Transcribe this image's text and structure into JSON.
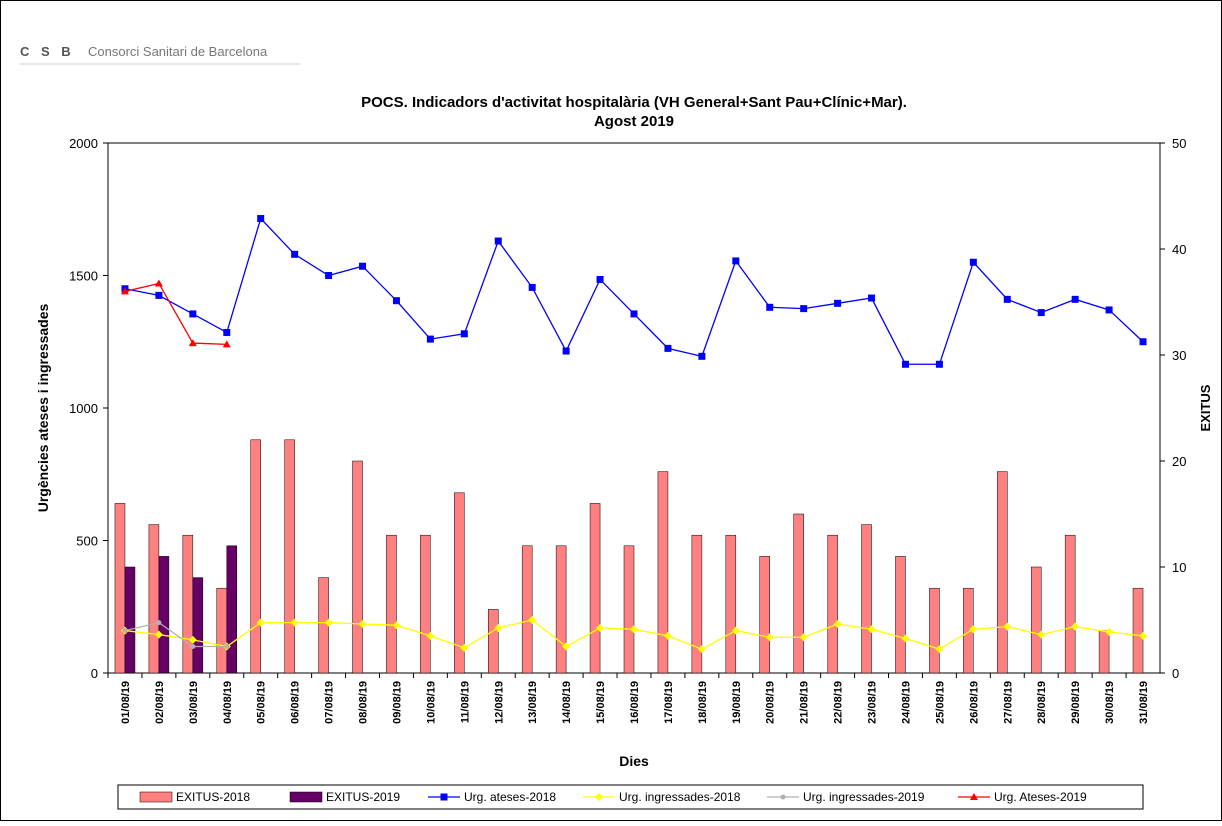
{
  "header": {
    "logo": "C S B",
    "name": "Consorci Sanitari de Barcelona"
  },
  "chart_data": {
    "type": "bar",
    "title": "POCS.  Indicadors d'activitat hospitalària (VH General+Sant Pau+Clínic+Mar).",
    "subtitle": "Agost 2019",
    "x_label": "Dies",
    "y_label": "Urgències ateses i ingressades",
    "y2_label": "EXITUS",
    "categories": [
      "01/08/19",
      "02/08/19",
      "03/08/19",
      "04/08/19",
      "05/08/19",
      "06/08/19",
      "07/08/19",
      "08/08/19",
      "09/08/19",
      "10/08/19",
      "11/08/19",
      "12/08/19",
      "13/08/19",
      "14/08/19",
      "15/08/19",
      "16/08/19",
      "17/08/19",
      "18/08/19",
      "19/08/19",
      "20/08/19",
      "21/08/19",
      "22/08/19",
      "23/08/19",
      "24/08/19",
      "25/08/19",
      "26/08/19",
      "27/08/19",
      "28/08/19",
      "29/08/19",
      "30/08/19",
      "31/08/19"
    ],
    "ylim": [
      0,
      2000
    ],
    "yticks": [
      0,
      500,
      1000,
      1500,
      2000
    ],
    "y2lim": [
      0,
      50
    ],
    "y2ticks": [
      0,
      10,
      20,
      30,
      40,
      50
    ],
    "series": [
      {
        "name": "EXITUS-2018",
        "type": "bar",
        "axis": "y2",
        "color": "#ff8080",
        "values": [
          16,
          14,
          13,
          8,
          22,
          22,
          9,
          20,
          13,
          13,
          17,
          6,
          12,
          12,
          16,
          12,
          19,
          13,
          13,
          11,
          15,
          13,
          14,
          11,
          8,
          8,
          19,
          10,
          13,
          4,
          8
        ]
      },
      {
        "name": "EXITUS-2019",
        "type": "bar",
        "axis": "y2",
        "color": "#660066",
        "values": [
          10,
          11,
          9,
          12,
          null,
          null,
          null,
          null,
          null,
          null,
          null,
          null,
          null,
          null,
          null,
          null,
          null,
          null,
          null,
          null,
          null,
          null,
          null,
          null,
          null,
          null,
          null,
          null,
          null,
          null,
          null
        ]
      },
      {
        "name": "Urg. ateses-2018",
        "type": "line",
        "marker": "square",
        "color": "#0000ff",
        "values": [
          1450,
          1425,
          1355,
          1285,
          1715,
          1580,
          1500,
          1535,
          1405,
          1260,
          1280,
          1630,
          1455,
          1215,
          1485,
          1355,
          1225,
          1195,
          1555,
          1380,
          1375,
          1395,
          1415,
          1165,
          1165,
          1550,
          1410,
          1360,
          1410,
          1370,
          1250
        ]
      },
      {
        "name": "Urg. ingressades-2018",
        "type": "line",
        "marker": "diamond",
        "color": "#ffff00",
        "values": [
          160,
          145,
          125,
          100,
          190,
          190,
          190,
          185,
          180,
          140,
          95,
          170,
          200,
          100,
          170,
          165,
          140,
          90,
          160,
          135,
          135,
          185,
          165,
          130,
          90,
          165,
          175,
          145,
          175,
          155,
          140
        ]
      },
      {
        "name": "Urg. ingressades-2019",
        "type": "line",
        "marker": "dot",
        "color": "#b0b0b0",
        "values": [
          160,
          190,
          100,
          100,
          null,
          null,
          null,
          null,
          null,
          null,
          null,
          null,
          null,
          null,
          null,
          null,
          null,
          null,
          null,
          null,
          null,
          null,
          null,
          null,
          null,
          null,
          null,
          null,
          null,
          null,
          null
        ]
      },
      {
        "name": "Urg. Ateses-2019",
        "type": "line",
        "marker": "triangle",
        "color": "#ff0000",
        "values": [
          1440,
          1470,
          1245,
          1240,
          null,
          null,
          null,
          null,
          null,
          null,
          null,
          null,
          null,
          null,
          null,
          null,
          null,
          null,
          null,
          null,
          null,
          null,
          null,
          null,
          null,
          null,
          null,
          null,
          null,
          null,
          null
        ]
      }
    ]
  }
}
